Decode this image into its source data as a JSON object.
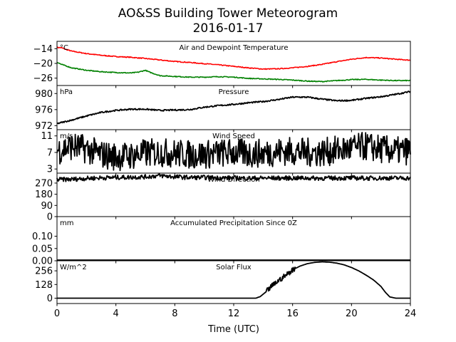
{
  "chart_data": {
    "type": "line",
    "title": "AO&SS Building Tower Meteorogram",
    "subtitle": "2016-01-17",
    "xlabel": "Time (UTC)",
    "x_ticks": [
      "0",
      "4",
      "8",
      "12",
      "16",
      "20",
      "24"
    ],
    "xlim": [
      0,
      24
    ],
    "panels": [
      {
        "title": "Air and Dewpoint Temperature",
        "unit": "°C",
        "ylim": [
          -29,
          -11
        ],
        "yticks": [
          -14,
          -20,
          -26
        ],
        "ytick_labels": [
          "−14",
          "−20",
          "−26"
        ],
        "series": [
          {
            "color": "#ff0000",
            "x": [
              0,
              0.3,
              0.6,
              1,
              2,
              3,
              4,
              5,
              6,
              7,
              8,
              9,
              10,
              11,
              12,
              13,
              14,
              15,
              16,
              17,
              18,
              19,
              20,
              21,
              22,
              23,
              24
            ],
            "y": [
              -13.5,
              -13.6,
              -14.3,
              -15.0,
              -16.0,
              -16.7,
              -17.2,
              -17.5,
              -18.0,
              -18.6,
              -19.2,
              -19.6,
              -20.1,
              -20.6,
              -21.2,
              -21.8,
              -22.3,
              -22.2,
              -21.8,
              -21.2,
              -20.4,
              -19.3,
              -18.3,
              -17.6,
              -17.8,
              -18.3,
              -18.7
            ]
          },
          {
            "color": "#008000",
            "x": [
              0,
              0.3,
              0.6,
              1,
              2,
              3,
              4,
              5,
              5.5,
              6,
              6.3,
              7,
              8,
              9,
              10,
              11,
              12,
              13,
              14,
              15,
              16,
              17,
              18,
              19,
              20,
              21,
              22,
              23,
              24
            ],
            "y": [
              -19.5,
              -20.4,
              -21.0,
              -21.8,
              -22.8,
              -23.4,
              -23.7,
              -23.9,
              -23.6,
              -22.8,
              -23.6,
              -25.0,
              -25.3,
              -25.6,
              -25.6,
              -25.4,
              -25.6,
              -26.1,
              -26.3,
              -26.5,
              -26.8,
              -27.2,
              -27.4,
              -27.0,
              -26.6,
              -26.5,
              -26.8,
              -27.0,
              -27.0
            ]
          }
        ]
      },
      {
        "title": "Pressure",
        "unit": "hPa",
        "ylim": [
          971,
          982
        ],
        "yticks": [
          980,
          976,
          972
        ],
        "ytick_labels": [
          "980",
          "976",
          "972"
        ],
        "series": [
          {
            "color": "#000000",
            "x": [
              0,
              1,
              2,
              3,
              4,
              5,
              6,
              7,
              8,
              9,
              10,
              11,
              12,
              13,
              14,
              15,
              16,
              17,
              18,
              19,
              20,
              21,
              22,
              23,
              24
            ],
            "y": [
              972.5,
              973.4,
              974.4,
              975.3,
              975.8,
              976.1,
              976.1,
              975.8,
              975.9,
              976.0,
              976.6,
              977.0,
              977.3,
              977.7,
              978.0,
              978.5,
              979.1,
              979.1,
              978.6,
              978.2,
              978.3,
              978.8,
              979.2,
              979.8,
              980.5
            ]
          }
        ]
      },
      {
        "title": "Wind Speed",
        "unit": "m/s",
        "ylim": [
          2,
          12.5
        ],
        "yticks": [
          11,
          7,
          3
        ],
        "ytick_labels": [
          "11",
          "7",
          "3"
        ],
        "series": [
          {
            "color": "#000000",
            "x": [
              0,
              1,
              2,
              3,
              4,
              5,
              6,
              7,
              8,
              9,
              10,
              11,
              12,
              13,
              14,
              15,
              16,
              17,
              18,
              19,
              20,
              21,
              22,
              23,
              24
            ],
            "y": [
              7.5,
              8.5,
              7.8,
              6.5,
              6.0,
              6.2,
              6.8,
              7.0,
              6.8,
              6.5,
              6.5,
              6.8,
              7.0,
              6.7,
              6.8,
              7.2,
              7.3,
              7.0,
              7.0,
              7.5,
              8.0,
              8.5,
              7.8,
              7.3,
              7.5
            ]
          }
        ]
      },
      {
        "title": "Wind Direction",
        "unit": "",
        "ylim": [
          0,
          350
        ],
        "yticks": [
          270,
          180,
          90,
          0
        ],
        "ytick_labels": [
          "270",
          "180",
          "90",
          "0"
        ],
        "series": [
          {
            "color": "#000000",
            "x": [
              0,
              1,
              2,
              3,
              4,
              5,
              6,
              7,
              8,
              9,
              10,
              11,
              12,
              13,
              14,
              15,
              16,
              17,
              18,
              19,
              20,
              21,
              22,
              23,
              24
            ],
            "y": [
              298,
              300,
              308,
              312,
              315,
              317,
              320,
              330,
              320,
              315,
              315,
              312,
              311,
              309,
              310,
              310,
              310,
              310,
              309,
              310,
              311,
              309,
              310,
              310,
              310
            ]
          }
        ]
      },
      {
        "title": "Accumulated Precipitation Since 0Z",
        "unit": "mm",
        "ylim": [
          0,
          0.18
        ],
        "yticks": [
          0.1,
          0.05,
          0.0
        ],
        "ytick_labels": [
          "0.10",
          "0.05",
          "0.00"
        ],
        "series": [
          {
            "color": "#000000",
            "x": [
              0,
              24
            ],
            "y": [
              0,
              0
            ]
          }
        ]
      },
      {
        "title": "Solar Flux",
        "unit": "W/m^2",
        "ylim": [
          -50,
          350
        ],
        "yticks": [
          256,
          128,
          0
        ],
        "ytick_labels": [
          "256",
          "128",
          "0"
        ],
        "series": [
          {
            "color": "#000000",
            "x": [
              0,
              13.5,
              13.8,
              14.2,
              14.6,
              15.0,
              15.5,
              16.0,
              16.5,
              17.0,
              17.5,
              18.0,
              18.5,
              19.0,
              19.5,
              20.0,
              20.5,
              21.0,
              21.5,
              22.0,
              22.3,
              22.6,
              23.0,
              24
            ],
            "y": [
              0,
              0,
              15,
              60,
              115,
              160,
              210,
              265,
              300,
              323,
              335,
              340,
              337,
              328,
              312,
              287,
              255,
              215,
              170,
              110,
              55,
              12,
              0,
              0
            ]
          }
        ]
      }
    ]
  }
}
